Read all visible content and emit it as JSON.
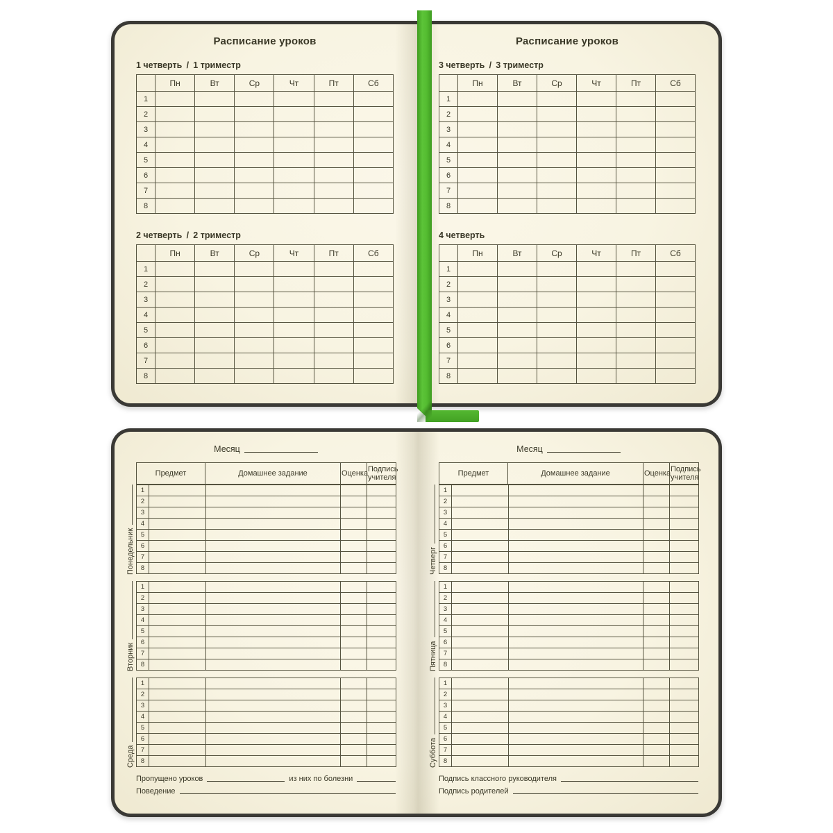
{
  "colors": {
    "background": "#ffffff",
    "page_cream": "#f8f4e2",
    "cover_dark": "#3a3935",
    "ink": "#3a3827",
    "table_line": "#55533f",
    "ribbon_green": "#52b830"
  },
  "lesson_numbers": [
    "1",
    "2",
    "3",
    "4",
    "5",
    "6",
    "7",
    "8"
  ],
  "schedule": {
    "title": "Расписание уроков",
    "weekdays": [
      "Пн",
      "Вт",
      "Ср",
      "Чт",
      "Пт",
      "Сб"
    ],
    "quarters": [
      {
        "label": "1 четверть / 1 триместр"
      },
      {
        "label": "2 четверть / 2 триместр"
      },
      {
        "label": "3 четверть / 3 триместр"
      },
      {
        "label": "4 четверть"
      }
    ]
  },
  "diary": {
    "month_label": "Месяц",
    "columns": {
      "subject": "Предмет",
      "homework": "Домашнее задание",
      "grade": "Оценка",
      "teacher_sign": "Подпись учителя"
    },
    "left_days": [
      "Понедельник",
      "Вторник",
      "Среда"
    ],
    "right_days": [
      "Четверг",
      "Пятница",
      "Суббота"
    ],
    "left_footer": {
      "missed": "Пропущено уроков",
      "due_illness": "из них по болезни",
      "behavior": "Поведение"
    },
    "right_footer": {
      "class_teacher": "Подпись классного руководителя",
      "parents": "Подпись родителей"
    }
  }
}
